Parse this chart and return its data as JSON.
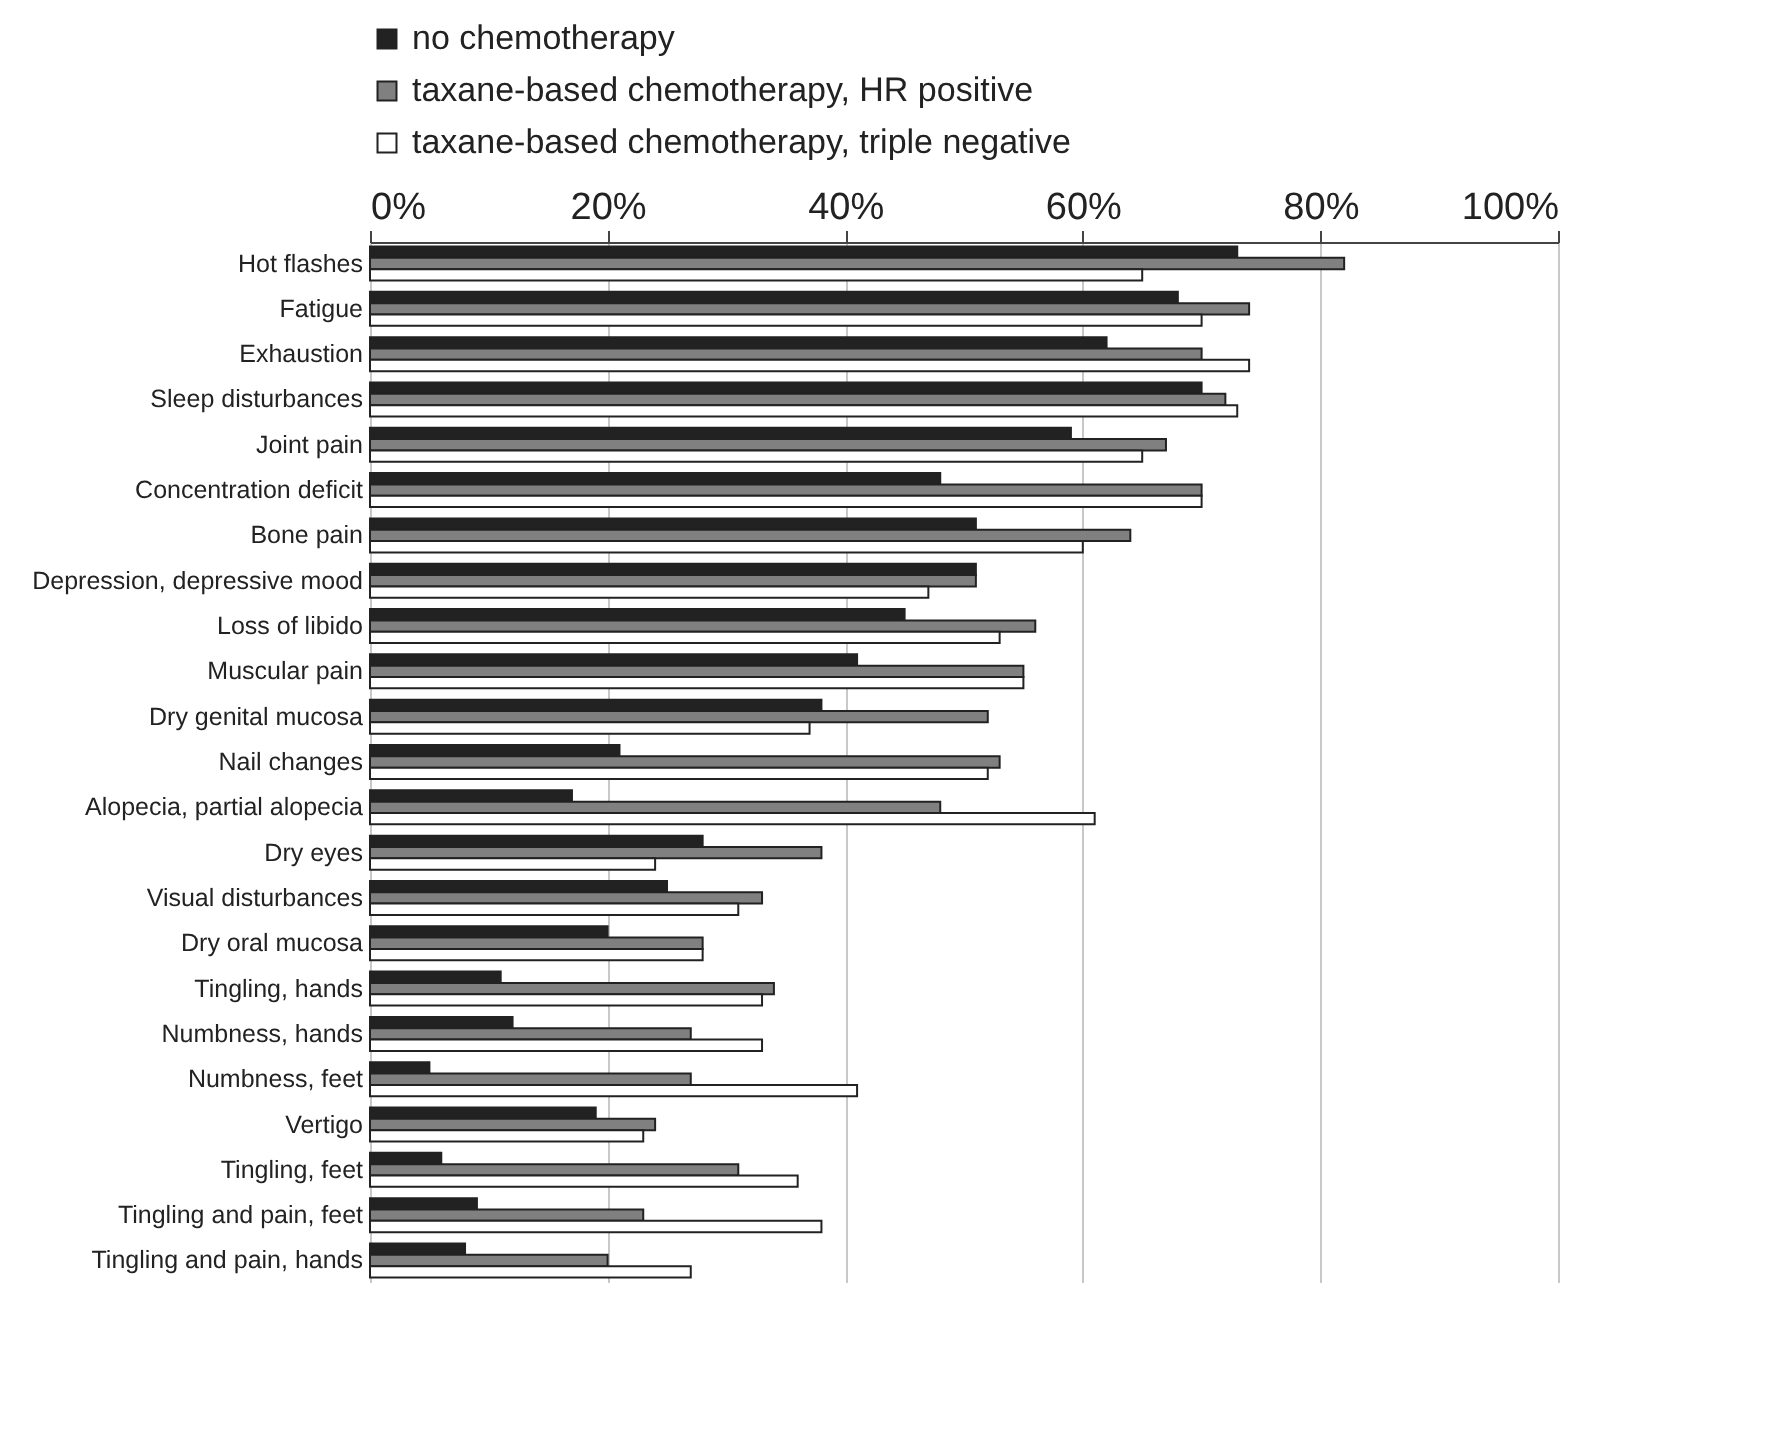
{
  "chart_data": {
    "type": "bar",
    "orientation": "horizontal",
    "categories": [
      "Hot flashes",
      "Fatigue",
      "Exhaustion",
      "Sleep disturbances",
      "Joint pain",
      "Concentration deficit",
      "Bone pain",
      "Depression, depressive mood",
      "Loss of libido",
      "Muscular pain",
      "Dry genital mucosa",
      "Nail changes",
      "Alopecia, partial alopecia",
      "Dry eyes",
      "Visual disturbances",
      "Dry oral mucosa",
      "Tingling, hands",
      "Numbness, hands",
      "Numbness, feet",
      "Vertigo",
      "Tingling, feet",
      "Tingling and pain, feet",
      "Tingling and pain, hands"
    ],
    "series": [
      {
        "name": "no chemotherapy",
        "color": "#222222",
        "values": [
          73,
          68,
          62,
          70,
          59,
          48,
          51,
          51,
          45,
          41,
          38,
          21,
          17,
          28,
          25,
          20,
          11,
          12,
          5,
          19,
          6,
          9,
          8
        ]
      },
      {
        "name": "taxane-based chemotherapy, HR positive",
        "color": "#808080",
        "values": [
          82,
          74,
          70,
          72,
          67,
          70,
          64,
          51,
          56,
          55,
          52,
          53,
          48,
          38,
          33,
          28,
          34,
          27,
          27,
          24,
          31,
          23,
          20
        ]
      },
      {
        "name": "taxane-based chemotherapy, triple negative",
        "color": "#ffffff",
        "values": [
          65,
          70,
          74,
          73,
          65,
          70,
          60,
          47,
          53,
          55,
          37,
          52,
          61,
          24,
          31,
          28,
          33,
          33,
          41,
          23,
          36,
          38,
          27
        ]
      }
    ],
    "xlim": [
      0,
      100
    ],
    "xticks": [
      {
        "value": 0,
        "label": "0%"
      },
      {
        "value": 20,
        "label": "20%"
      },
      {
        "value": 40,
        "label": "40%"
      },
      {
        "value": 60,
        "label": "60%"
      },
      {
        "value": 80,
        "label": "80%"
      },
      {
        "value": 100,
        "label": "100%"
      }
    ],
    "grid": "x",
    "legend": "top left"
  }
}
